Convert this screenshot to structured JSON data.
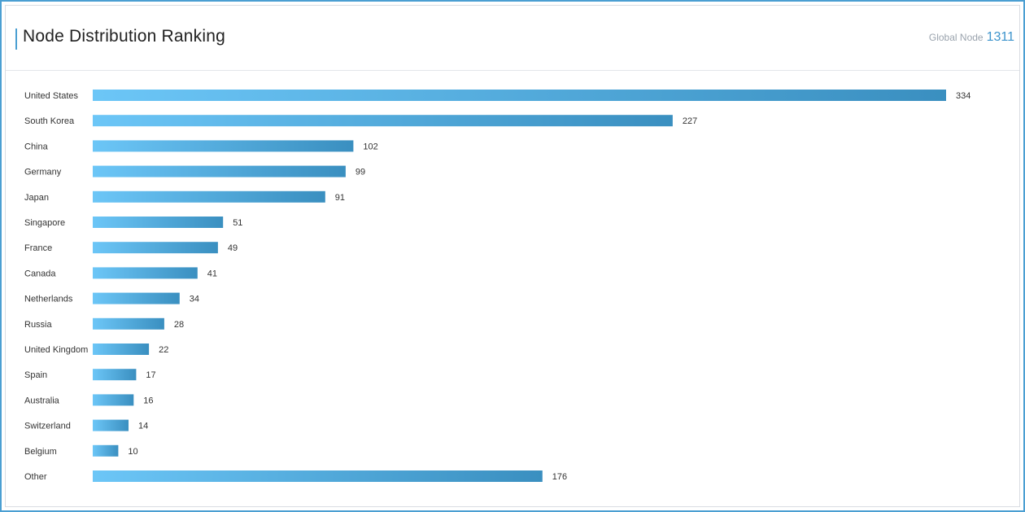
{
  "header": {
    "title": "Node Distribution Ranking",
    "global_label": "Global Node",
    "global_value": "1311"
  },
  "colors": {
    "bar_start": "#6cc6f7",
    "bar_end": "#3a8fc0",
    "accent": "#4b9fd2"
  },
  "chart_data": {
    "type": "bar",
    "orientation": "horizontal",
    "title": "Node Distribution Ranking",
    "xlabel": "",
    "ylabel": "",
    "xlim": [
      0,
      334
    ],
    "grid": false,
    "categories": [
      "United States",
      "South Korea",
      "China",
      "Germany",
      "Japan",
      "Singapore",
      "France",
      "Canada",
      "Netherlands",
      "Russia",
      "United Kingdom",
      "Spain",
      "Australia",
      "Switzerland",
      "Belgium",
      "Other"
    ],
    "values": [
      334,
      227,
      102,
      99,
      91,
      51,
      49,
      41,
      34,
      28,
      22,
      17,
      16,
      14,
      10,
      176
    ]
  }
}
